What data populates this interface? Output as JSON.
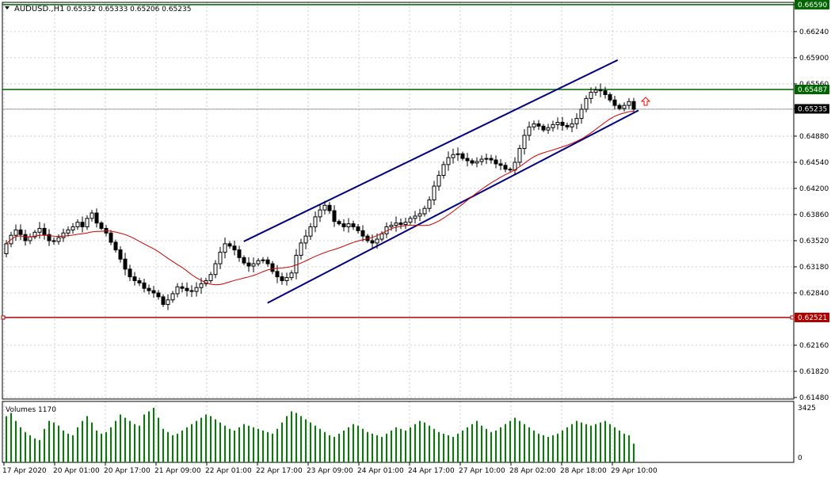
{
  "header": {
    "title": "AUDUSD.,H1",
    "ohlc": "0.65332 0.65333 0.65206 0.65235"
  },
  "volume_panel": {
    "label": "Volumes 1170",
    "max_label": "3425",
    "min_label": "0"
  },
  "colors": {
    "grid": "#c0c0c0",
    "candle": "#000000",
    "ma": "#d00000",
    "channel": "#000080",
    "resistance": "#006400",
    "support": "#b00000",
    "volume": "#008000",
    "arrow": "#ff0000"
  },
  "chart_data": {
    "type": "candlestick",
    "symbol": "AUDUSD.",
    "timeframe": "H1",
    "ylim": [
      0.6146,
      0.6662
    ],
    "yticks": [
      "0.66590",
      "0.66240",
      "0.65900",
      "0.65560",
      "0.65235",
      "0.64880",
      "0.64540",
      "0.64200",
      "0.63860",
      "0.63520",
      "0.63180",
      "0.62840",
      "0.62521",
      "0.62160",
      "0.61820",
      "0.61480"
    ],
    "ytick_values": [
      0.6659,
      0.6624,
      0.659,
      0.6556,
      0.65235,
      0.6488,
      0.6454,
      0.642,
      0.6386,
      0.6352,
      0.6318,
      0.6284,
      0.62521,
      0.6216,
      0.6182,
      0.6148
    ],
    "highlight_labels": [
      {
        "label": "0.66590",
        "value": 0.6659,
        "color": "#006400"
      },
      {
        "label": "0.65487",
        "value": 0.65487,
        "color": "#006400"
      },
      {
        "label": "0.65235",
        "value": 0.65235,
        "color": "#000000"
      },
      {
        "label": "0.62521",
        "value": 0.62521,
        "color": "#b00000"
      }
    ],
    "xtick_labels": [
      "17 Apr 2020",
      "20 Apr 01:00",
      "20 Apr 17:00",
      "21 Apr 09:00",
      "22 Apr 01:00",
      "22 Apr 17:00",
      "23 Apr 09:00",
      "24 Apr 01:00",
      "24 Apr 17:00",
      "27 Apr 10:00",
      "28 Apr 02:00",
      "28 Apr 18:00",
      "29 Apr 10:00"
    ],
    "closes": [
      0.6348,
      0.6359,
      0.6366,
      0.636,
      0.6352,
      0.6357,
      0.6363,
      0.6368,
      0.636,
      0.6352,
      0.6351,
      0.6356,
      0.6362,
      0.6366,
      0.637,
      0.6376,
      0.637,
      0.6381,
      0.6388,
      0.6375,
      0.6368,
      0.6362,
      0.635,
      0.634,
      0.6328,
      0.6315,
      0.6305,
      0.63,
      0.6297,
      0.629,
      0.6287,
      0.6284,
      0.6279,
      0.6269,
      0.6275,
      0.6283,
      0.6292,
      0.629,
      0.6287,
      0.6286,
      0.6291,
      0.6296,
      0.63,
      0.6308,
      0.6322,
      0.6337,
      0.6348,
      0.6345,
      0.634,
      0.633,
      0.6323,
      0.6319,
      0.6322,
      0.6326,
      0.6327,
      0.6322,
      0.6312,
      0.6305,
      0.63,
      0.6304,
      0.631,
      0.6333,
      0.6349,
      0.6358,
      0.637,
      0.6383,
      0.6392,
      0.6398,
      0.6391,
      0.6377,
      0.6374,
      0.637,
      0.6374,
      0.637,
      0.6365,
      0.6358,
      0.6352,
      0.6349,
      0.6354,
      0.6361,
      0.637,
      0.6372,
      0.6375,
      0.6373,
      0.6376,
      0.6381,
      0.6384,
      0.6387,
      0.6394,
      0.6405,
      0.6423,
      0.6437,
      0.6451,
      0.646,
      0.6464,
      0.6465,
      0.6459,
      0.6456,
      0.6453,
      0.6455,
      0.6458,
      0.6459,
      0.6457,
      0.6452,
      0.645,
      0.6445,
      0.6444,
      0.6454,
      0.6472,
      0.6489,
      0.65,
      0.6504,
      0.6501,
      0.6496,
      0.6499,
      0.6503,
      0.6506,
      0.6502,
      0.65,
      0.6504,
      0.6511,
      0.6523,
      0.6537,
      0.6545,
      0.6548,
      0.6547,
      0.6542,
      0.6535,
      0.6528,
      0.6524,
      0.6528,
      0.6533,
      0.6523
    ],
    "ma_period": 21,
    "volumes": [
      2900,
      3100,
      2600,
      2200,
      1900,
      1700,
      1500,
      1400,
      2100,
      2600,
      2500,
      2300,
      2000,
      1800,
      1700,
      2200,
      2600,
      2900,
      2500,
      2000,
      1800,
      1900,
      2200,
      2600,
      3000,
      2800,
      2600,
      2400,
      2300,
      3000,
      3200,
      3425,
      2800,
      2100,
      1900,
      1700,
      1800,
      2000,
      2200,
      2400,
      2600,
      2800,
      3000,
      2900,
      2700,
      2500,
      2300,
      2100,
      2000,
      2200,
      2400,
      2300,
      2200,
      2100,
      2000,
      1900,
      1800,
      2100,
      2500,
      2900,
      3200,
      3100,
      2900,
      2700,
      2500,
      2300,
      2100,
      1900,
      1700,
      1600,
      1800,
      2000,
      2200,
      2400,
      2300,
      2100,
      1900,
      1800,
      1700,
      1600,
      1800,
      2000,
      2200,
      2100,
      2000,
      2200,
      2400,
      2600,
      2500,
      2300,
      2100,
      1900,
      1800,
      1700,
      1600,
      1800,
      2000,
      2200,
      2400,
      2600,
      2300,
      2100,
      1900,
      2000,
      2200,
      2400,
      2600,
      2800,
      2600,
      2400,
      2200,
      2000,
      1800,
      1700,
      1600,
      1700,
      1800,
      2000,
      2200,
      2400,
      2600,
      2500,
      2400,
      2300,
      2400,
      2500,
      2600,
      2400,
      2200,
      2000,
      1800,
      1700,
      1170
    ],
    "channel_upper": {
      "from": {
        "index": 80,
        "price": 0.6351
      },
      "to": {
        "index": 206,
        "price": 0.6587
      }
    },
    "channel_lower": {
      "from": {
        "index": 88,
        "price": 0.6271
      },
      "to": {
        "index": 213,
        "price": 0.65215
      }
    },
    "resistance_top": 0.6659,
    "resistance": 0.65487,
    "support": 0.62521
  }
}
